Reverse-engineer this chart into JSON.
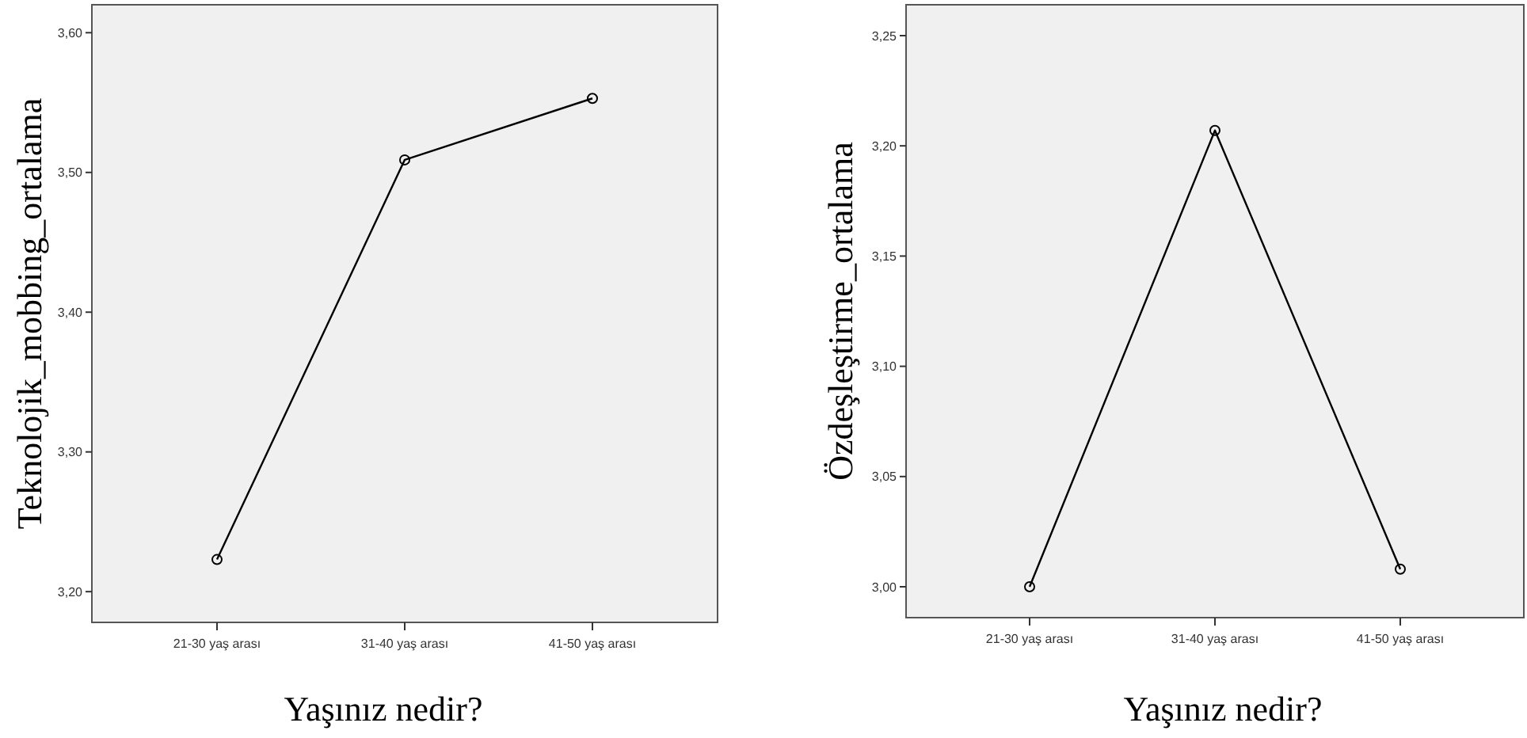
{
  "chart_data": [
    {
      "type": "line",
      "xlabel": "Yaşınız nedir?",
      "ylabel": "Teknolojik_mobbing_ortalama",
      "categories": [
        "21-30 yaş arası",
        "31-40 yaş arası",
        "41-50 yaş arası"
      ],
      "series": [
        {
          "color": "#000000",
          "values": [
            3.223,
            3.509,
            3.553
          ]
        }
      ],
      "ylim": [
        3.178,
        3.62
      ],
      "yticks": [
        {
          "value": 3.2,
          "label": "3,20"
        },
        {
          "value": 3.3,
          "label": "3,30"
        },
        {
          "value": 3.4,
          "label": "3,40"
        },
        {
          "value": 3.5,
          "label": "3,50"
        },
        {
          "value": 3.6,
          "label": "3,60"
        }
      ],
      "grid": false,
      "marker": "circle",
      "line_style": "solid"
    },
    {
      "type": "line",
      "xlabel": "Yaşınız nedir?",
      "ylabel": "Özdeşleştirme_ortalama",
      "categories": [
        "21-30 yaş arası",
        "31-40 yaş arası",
        "41-50 yaş arası"
      ],
      "series": [
        {
          "color": "#000000",
          "values": [
            3.0,
            3.207,
            3.008
          ]
        }
      ],
      "ylim": [
        2.986,
        3.264
      ],
      "yticks": [
        {
          "value": 3.0,
          "label": "3,00"
        },
        {
          "value": 3.05,
          "label": "3,05"
        },
        {
          "value": 3.1,
          "label": "3,10"
        },
        {
          "value": 3.15,
          "label": "3,15"
        },
        {
          "value": 3.2,
          "label": "3,20"
        },
        {
          "value": 3.25,
          "label": "3,25"
        }
      ],
      "grid": false,
      "marker": "circle",
      "line_style": "solid"
    }
  ]
}
